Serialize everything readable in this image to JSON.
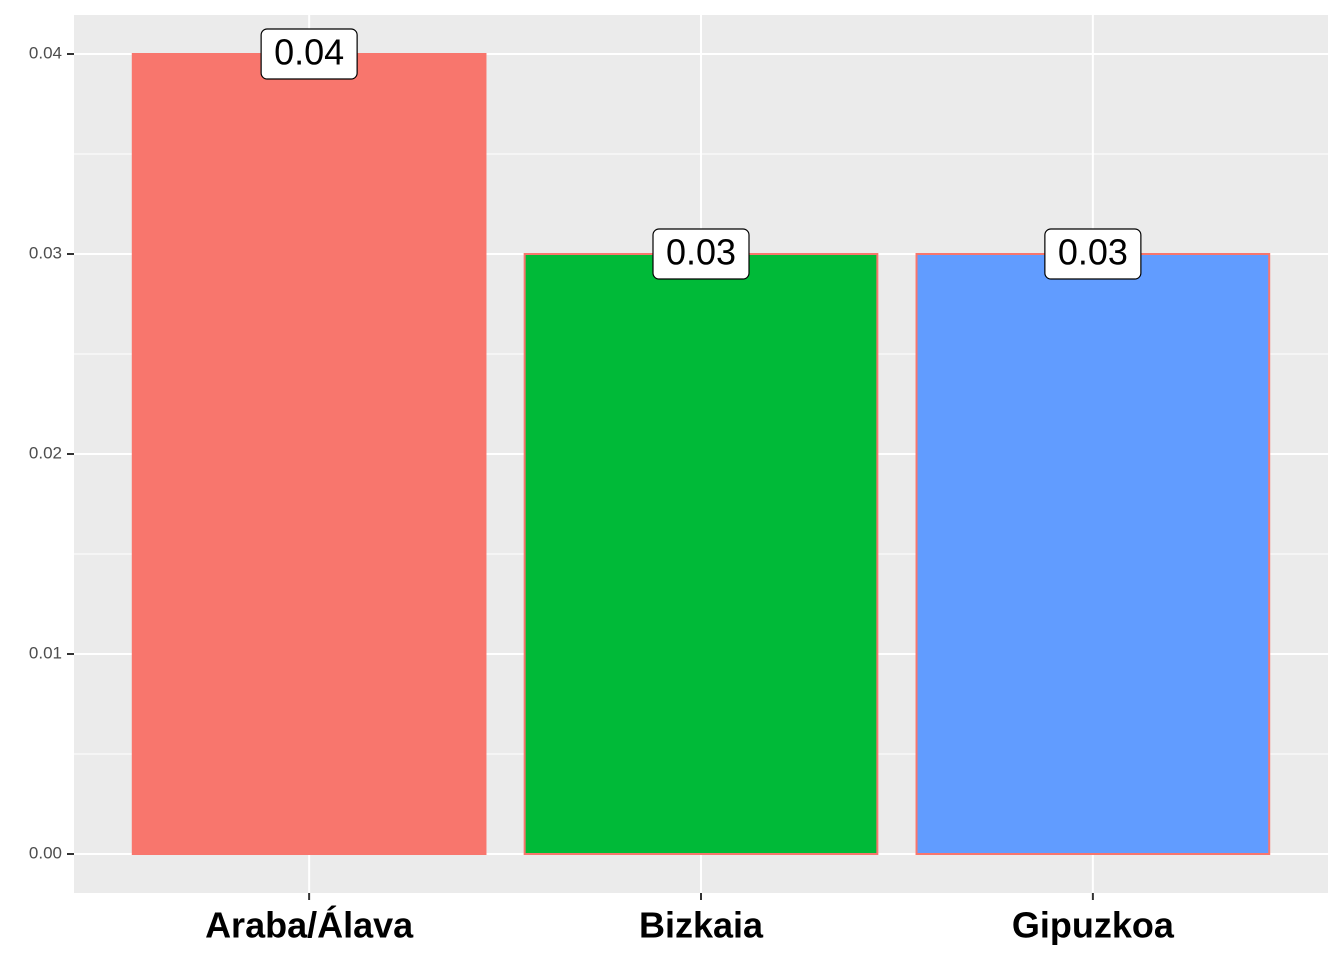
{
  "chart_data": {
    "type": "bar",
    "categories": [
      "Araba/Álava",
      "Bizkaia",
      "Gipuzkoa"
    ],
    "values": [
      0.04,
      0.03,
      0.03
    ],
    "colors": [
      "#F8766D",
      "#00BA38",
      "#619CFF"
    ],
    "edge_color": "#F8766D",
    "ylim": [
      -0.00195,
      0.04195
    ],
    "yticks": [
      {
        "value": 0,
        "label": "0.00"
      },
      0.01,
      0.02,
      0.03,
      0.04
    ],
    "grid": true
  }
}
